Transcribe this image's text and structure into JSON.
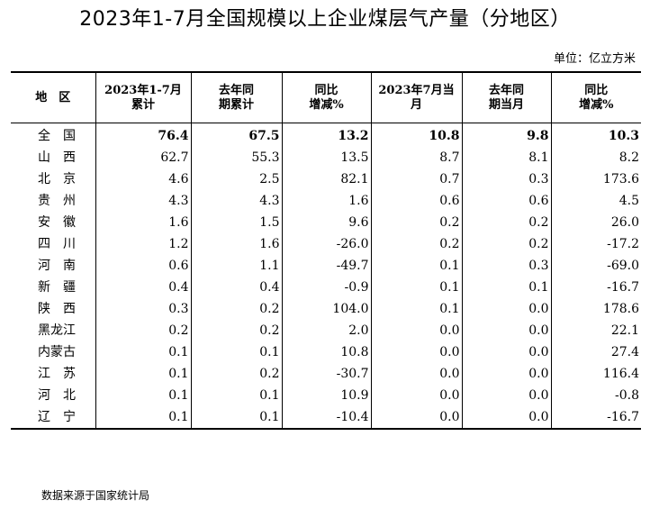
{
  "title": "2023年1-7月全国规模以上企业煤层气产量（分地区）",
  "unit": "单位：亿立方米",
  "headers": [
    {
      "line1": "地　区",
      "line2": ""
    },
    {
      "line1": "2023年1-7月",
      "line2": "累计"
    },
    {
      "line1": "去年同",
      "line2": "期累计"
    },
    {
      "line1": "同比",
      "line2": "增减%"
    },
    {
      "line1": "2023年7月当",
      "line2": "月"
    },
    {
      "line1": "去年同",
      "line2": "期当月"
    },
    {
      "line1": "同比",
      "line2": "增减%"
    }
  ],
  "rows": [
    {
      "region": "全　国",
      "cum_2023": "76.4",
      "cum_prev": "67.5",
      "cum_yoy": "13.2",
      "month_2023": "10.8",
      "month_prev": "9.8",
      "month_yoy": "10.3"
    },
    {
      "region": "山　西",
      "cum_2023": "62.7",
      "cum_prev": "55.3",
      "cum_yoy": "13.5",
      "month_2023": "8.7",
      "month_prev": "8.1",
      "month_yoy": "8.2"
    },
    {
      "region": "北　京",
      "cum_2023": "4.6",
      "cum_prev": "2.5",
      "cum_yoy": "82.1",
      "month_2023": "0.7",
      "month_prev": "0.3",
      "month_yoy": "173.6"
    },
    {
      "region": "贵　州",
      "cum_2023": "4.3",
      "cum_prev": "4.3",
      "cum_yoy": "1.6",
      "month_2023": "0.6",
      "month_prev": "0.6",
      "month_yoy": "4.5"
    },
    {
      "region": "安　徽",
      "cum_2023": "1.6",
      "cum_prev": "1.5",
      "cum_yoy": "9.6",
      "month_2023": "0.2",
      "month_prev": "0.2",
      "month_yoy": "26.0"
    },
    {
      "region": "四　川",
      "cum_2023": "1.2",
      "cum_prev": "1.6",
      "cum_yoy": "-26.0",
      "month_2023": "0.2",
      "month_prev": "0.2",
      "month_yoy": "-17.2"
    },
    {
      "region": "河　南",
      "cum_2023": "0.6",
      "cum_prev": "1.1",
      "cum_yoy": "-49.7",
      "month_2023": "0.1",
      "month_prev": "0.3",
      "month_yoy": "-69.0"
    },
    {
      "region": "新　疆",
      "cum_2023": "0.4",
      "cum_prev": "0.4",
      "cum_yoy": "-0.9",
      "month_2023": "0.1",
      "month_prev": "0.1",
      "month_yoy": "-16.7"
    },
    {
      "region": "陕　西",
      "cum_2023": "0.3",
      "cum_prev": "0.2",
      "cum_yoy": "104.0",
      "month_2023": "0.1",
      "month_prev": "0.0",
      "month_yoy": "178.6"
    },
    {
      "region": "黑龙江",
      "cum_2023": "0.2",
      "cum_prev": "0.2",
      "cum_yoy": "2.0",
      "month_2023": "0.0",
      "month_prev": "0.0",
      "month_yoy": "22.1"
    },
    {
      "region": "内蒙古",
      "cum_2023": "0.1",
      "cum_prev": "0.1",
      "cum_yoy": "10.8",
      "month_2023": "0.0",
      "month_prev": "0.0",
      "month_yoy": "27.4"
    },
    {
      "region": "江　苏",
      "cum_2023": "0.1",
      "cum_prev": "0.2",
      "cum_yoy": "-30.7",
      "month_2023": "0.0",
      "month_prev": "0.0",
      "month_yoy": "116.4"
    },
    {
      "region": "河　北",
      "cum_2023": "0.1",
      "cum_prev": "0.1",
      "cum_yoy": "10.9",
      "month_2023": "0.0",
      "month_prev": "0.0",
      "month_yoy": "-0.8"
    },
    {
      "region": "辽　宁",
      "cum_2023": "0.1",
      "cum_prev": "0.1",
      "cum_yoy": "-10.4",
      "month_2023": "0.0",
      "month_prev": "0.0",
      "month_yoy": "-16.7"
    }
  ],
  "source": "数据来源于国家统计局"
}
